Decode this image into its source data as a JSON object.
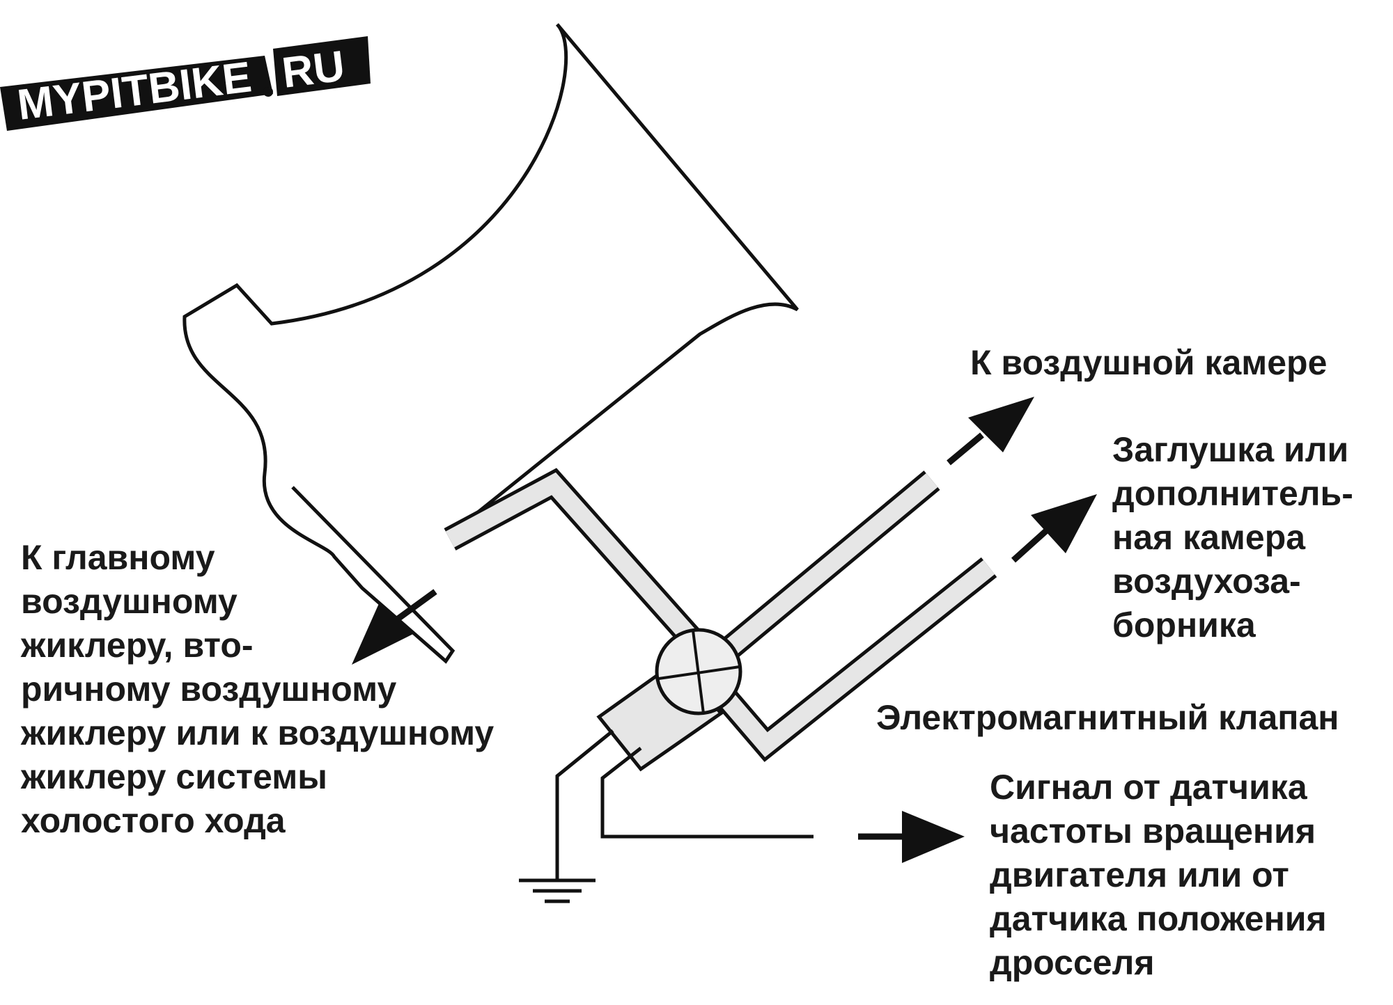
{
  "logo": {
    "text_left": "MYPITBIKE",
    "text_right": "RU",
    "colors": {
      "band": "#111111",
      "text": "#ffffff"
    }
  },
  "labels": {
    "main_jet": [
      "К главному",
      "воздушному",
      "жиклеру, вто-",
      "ричному воздушному",
      "жиклеру или к воздушному",
      "жиклеру системы",
      "холостого хода"
    ],
    "air_chamber": "К воздушной камере",
    "plug": [
      "Заглушка или",
      "дополнитель-",
      "ная камера",
      "воздухоза-",
      "борника"
    ],
    "solenoid": "Электромагнитный клапан",
    "signal": [
      "Сигнал от датчика",
      "частоты вращения",
      "двигателя или от",
      "датчика положения",
      "дросселя"
    ]
  },
  "colors": {
    "line": "#111111",
    "pipe_fill": "#e6e6e6",
    "background": "#ffffff"
  }
}
